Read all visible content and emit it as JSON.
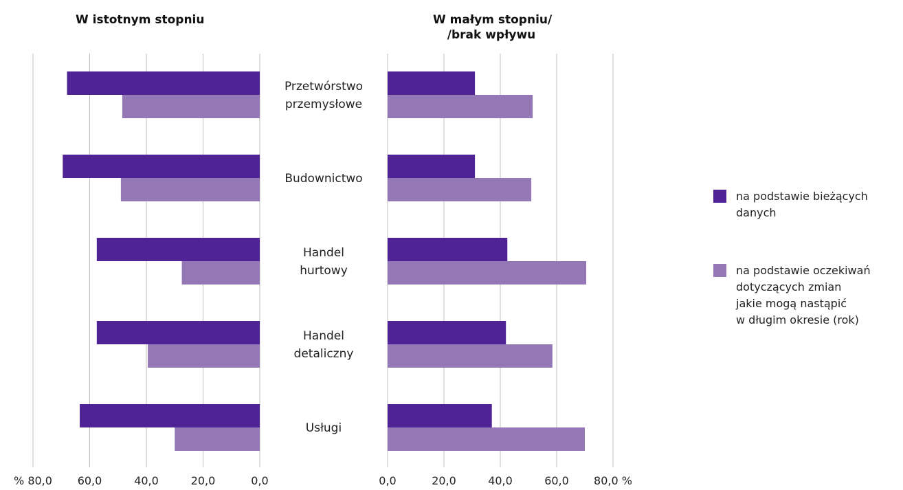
{
  "chart_data": [
    {
      "type": "bar",
      "orientation": "horizontal",
      "title": "W istotnym stopniu",
      "x_direction": "reversed",
      "xlim": [
        0,
        80
      ],
      "tick_labels": [
        "% 80,0",
        "60,0",
        "40,0",
        "20,0",
        "0,0"
      ],
      "categories": [
        "Przetwórstwo przemysłowe",
        "Budownictwo",
        "Handel hurtowy",
        "Handel detaliczny",
        "Usługi"
      ],
      "series": [
        {
          "name": "na podstawie bieżących danych",
          "values": [
            68.0,
            69.5,
            57.5,
            57.5,
            63.5
          ]
        },
        {
          "name": "na podstawie oczekiwań dotyczących zmian jakie mogą nastąpić w długim okresie (rok)",
          "values": [
            48.5,
            49.0,
            27.5,
            39.5,
            30.0
          ]
        }
      ],
      "grid": true
    },
    {
      "type": "bar",
      "orientation": "horizontal",
      "title": "W małym stopniu/ /brak wpływu",
      "title_lines": [
        "W małym stopniu/",
        "/brak wpływu"
      ],
      "xlim": [
        0,
        80
      ],
      "tick_labels": [
        "0,0",
        "20,0",
        "40,0",
        "60,0",
        "80,0 %"
      ],
      "categories": [
        "Przetwórstwo przemysłowe",
        "Budownictwo",
        "Handel hurtowy",
        "Handel detaliczny",
        "Usługi"
      ],
      "series": [
        {
          "name": "na podstawie bieżących danych",
          "values": [
            31.0,
            31.0,
            42.5,
            42.0,
            37.0
          ]
        },
        {
          "name": "na podstawie oczekiwań dotyczących zmian jakie mogą nastąpić w długim okresie (rok)",
          "values": [
            51.5,
            51.0,
            70.5,
            58.5,
            70.0
          ]
        }
      ],
      "grid": true
    }
  ],
  "category_labels": [
    [
      "Przetwórstwo",
      "przemysłowe"
    ],
    [
      "Budownictwo"
    ],
    [
      "Handel",
      "hurtowy"
    ],
    [
      "Handel",
      "detaliczny"
    ],
    [
      "Usługi"
    ]
  ],
  "legend": {
    "items": [
      {
        "label": "na podstawie bieżących\ndanych",
        "color": "#4f2396"
      },
      {
        "label": "na podstawie oczekiwań\ndotyczących zmian\njakie mogą nastąpić\nw długim okresie (rok)",
        "color": "#9378b5"
      }
    ],
    "placement": "right"
  },
  "colors": {
    "series_current": "#4f2396",
    "series_expected": "#9378b5",
    "grid": "#bfbfbf"
  }
}
